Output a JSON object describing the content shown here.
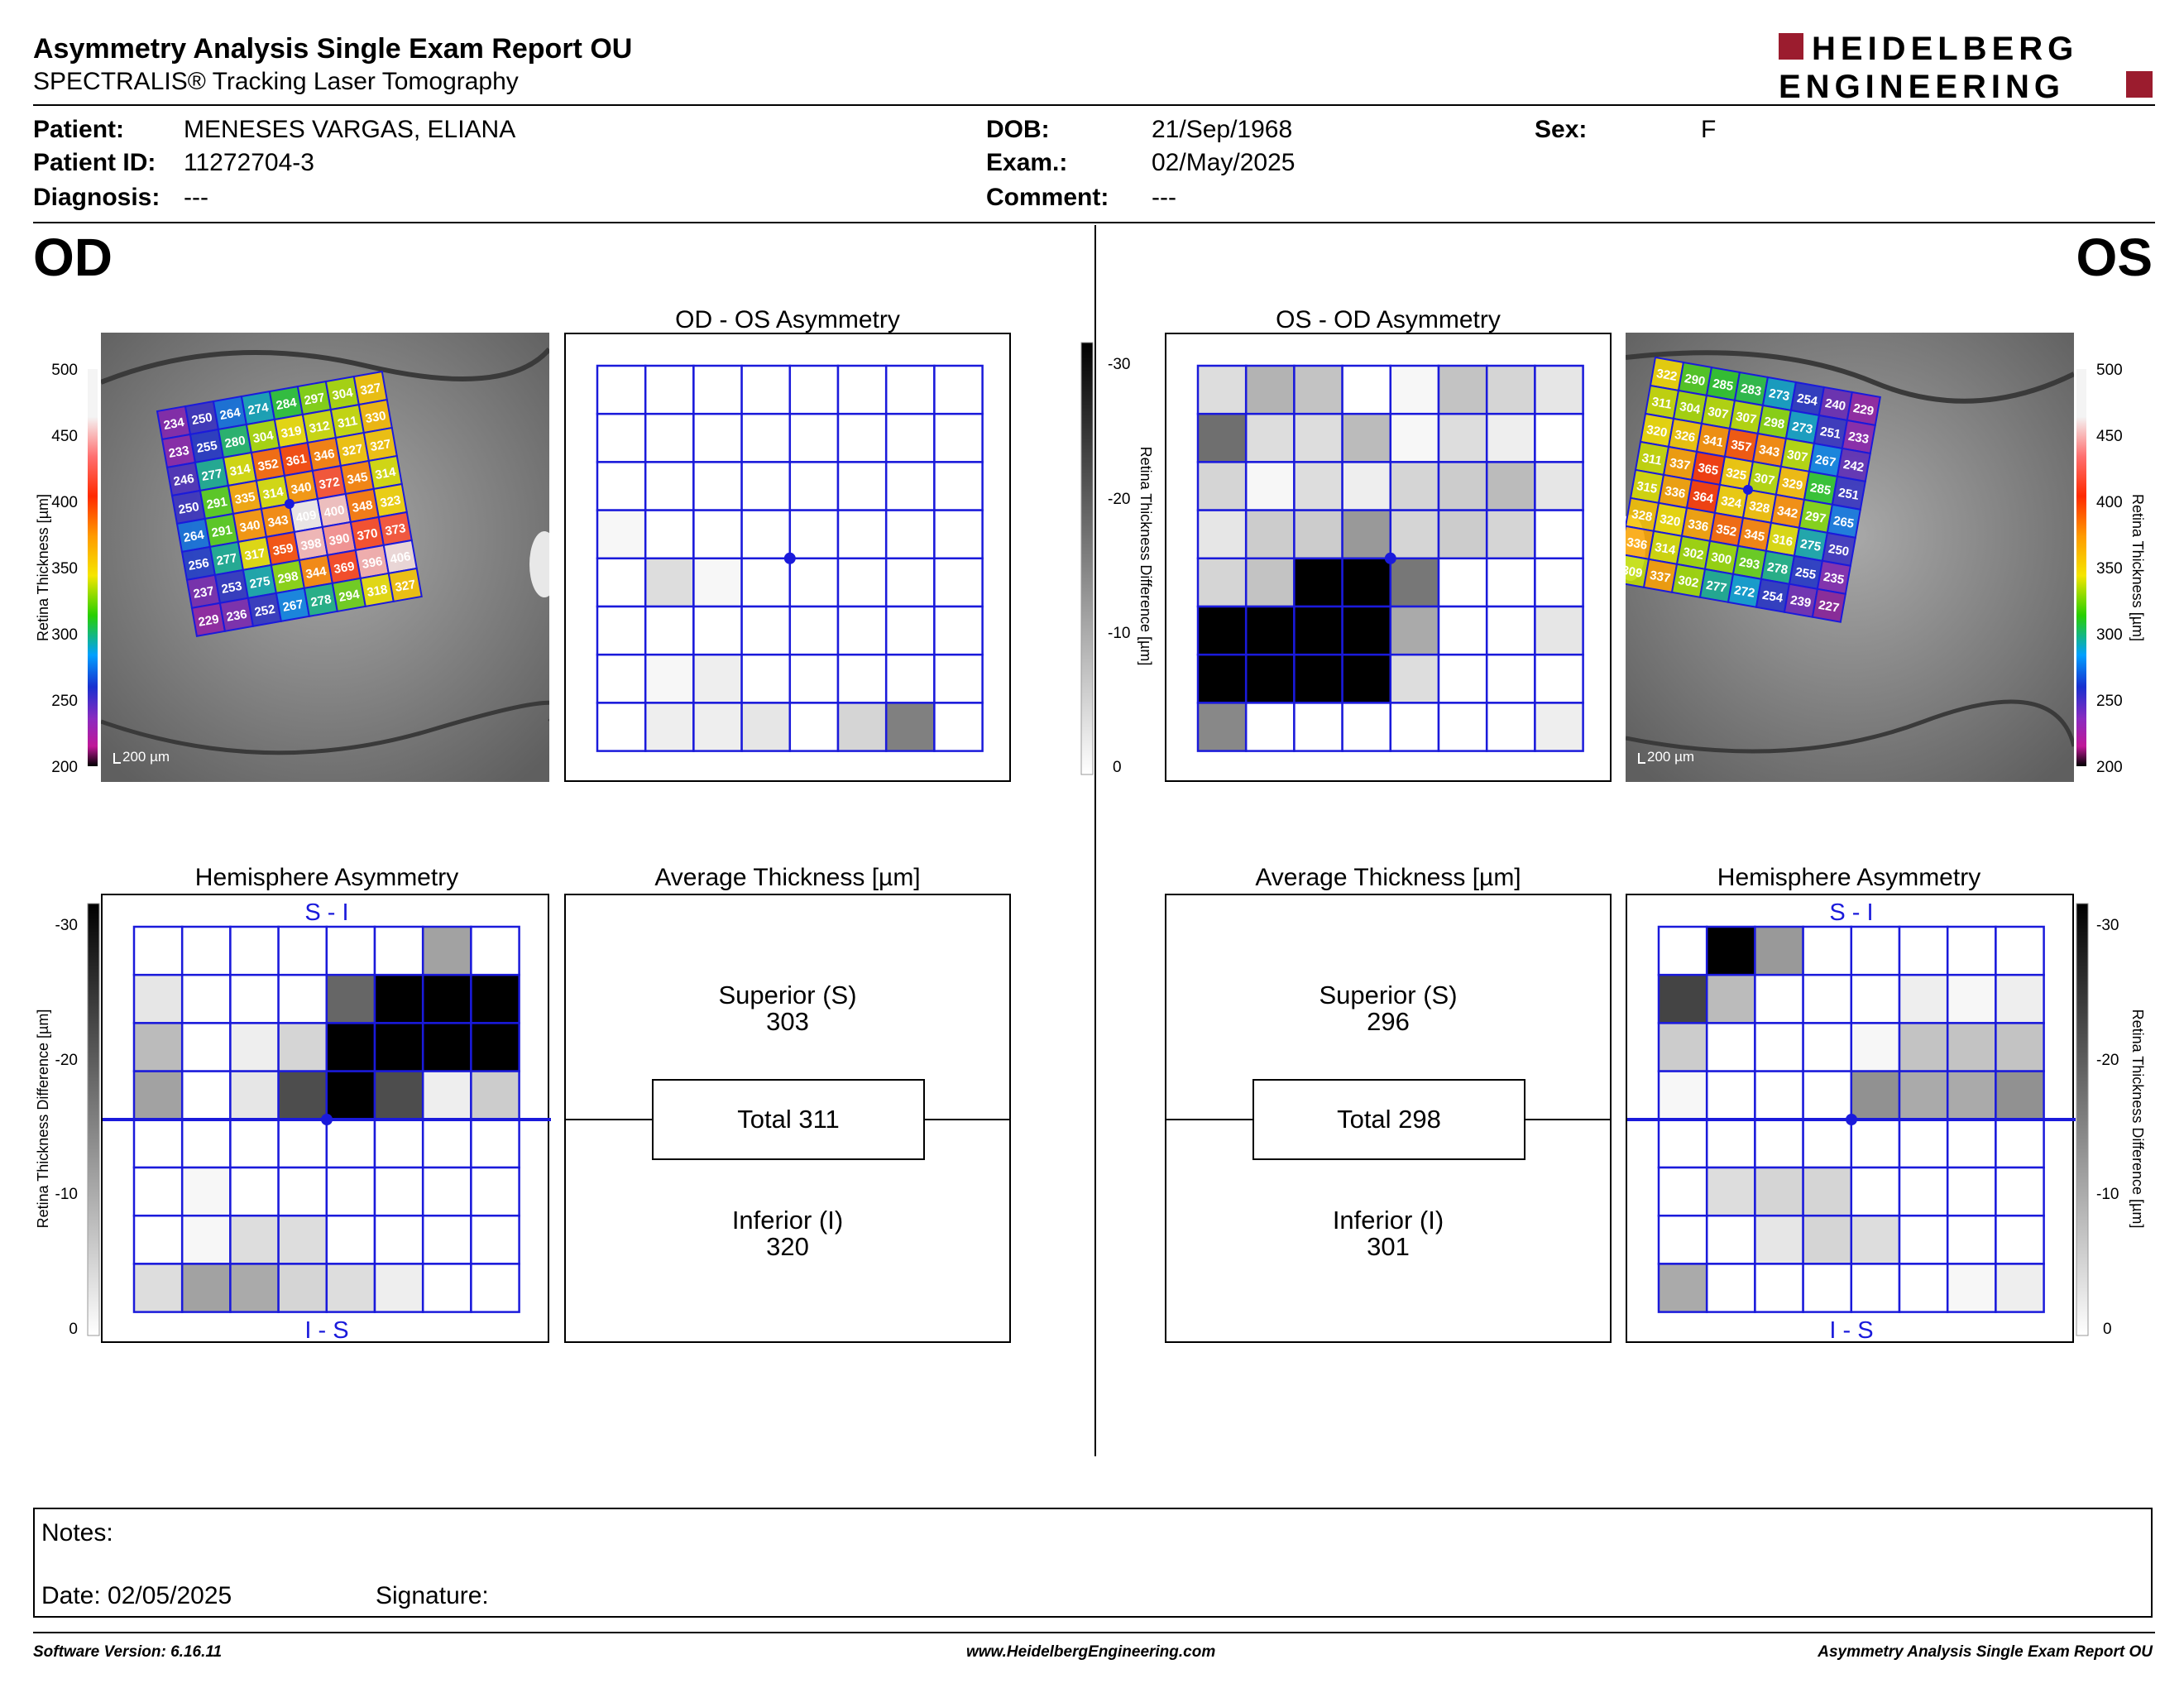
{
  "report": {
    "title": "Asymmetry Analysis Single Exam Report OU",
    "subtitle": "SPECTRALIS® Tracking Laser Tomography",
    "logo_line1": "HEIDELBERG",
    "logo_line2": "ENGINEERING",
    "brand_color": "#9b1c2e"
  },
  "patient": {
    "patient_label": "Patient:",
    "patient_value": "MENESES VARGAS, ELIANA",
    "id_label": "Patient ID:",
    "id_value": "11272704-3",
    "diagnosis_label": "Diagnosis:",
    "diagnosis_value": "---",
    "dob_label": "DOB:",
    "dob_value": "21/Sep/1968",
    "exam_label": "Exam.:",
    "exam_value": "02/May/2025",
    "comment_label": "Comment:",
    "comment_value": "---",
    "sex_label": "Sex:",
    "sex_value": "F"
  },
  "od": {
    "eye_label": "OD",
    "asym_title": "OD - OS Asymmetry",
    "hemi_title": "Hemisphere Asymmetry",
    "hemi_top": "S - I",
    "hemi_bottom": "I - S",
    "avg_title": "Average Thickness [µm]",
    "superior_label": "Superior (S)",
    "superior_value": "303",
    "total_label": "Total 311",
    "inferior_label": "Inferior (I)",
    "inferior_value": "320",
    "scale_text": "200 µm",
    "grid_values": [
      [
        234,
        250,
        264,
        274,
        284,
        297,
        304,
        327
      ],
      [
        233,
        255,
        280,
        304,
        319,
        312,
        311,
        330
      ],
      [
        246,
        277,
        314,
        352,
        361,
        346,
        327,
        327
      ],
      [
        250,
        291,
        335,
        314,
        340,
        372,
        345,
        314
      ],
      [
        264,
        291,
        340,
        343,
        409,
        400,
        348,
        323
      ],
      [
        256,
        277,
        317,
        359,
        398,
        390,
        370,
        373
      ],
      [
        237,
        253,
        275,
        298,
        344,
        369,
        396,
        406
      ],
      [
        229,
        236,
        252,
        267,
        278,
        294,
        318,
        327
      ]
    ],
    "asym_gray": [
      [
        0,
        0,
        0,
        0,
        0,
        0,
        0,
        0
      ],
      [
        0,
        0,
        0,
        0,
        0,
        0,
        0,
        0
      ],
      [
        0,
        0,
        0,
        0,
        0,
        0,
        0,
        0
      ],
      [
        1,
        0,
        0,
        0,
        0,
        0,
        0,
        0
      ],
      [
        0,
        4,
        1,
        0,
        0,
        0,
        0,
        0
      ],
      [
        0,
        0,
        0,
        0,
        0,
        0,
        0,
        0
      ],
      [
        0,
        1,
        2,
        0,
        0,
        0,
        0,
        0
      ],
      [
        0,
        2,
        2,
        3,
        0,
        5,
        15,
        0
      ]
    ],
    "hemi_gray": [
      [
        0,
        0,
        0,
        0,
        0,
        0,
        11,
        0
      ],
      [
        3,
        0,
        0,
        0,
        18,
        30,
        30,
        30
      ],
      [
        8,
        0,
        2,
        5,
        30,
        30,
        30,
        30
      ],
      [
        11,
        0,
        3,
        21,
        30,
        21,
        2,
        6
      ],
      [
        0,
        0,
        0,
        0,
        0,
        0,
        0,
        0
      ],
      [
        0,
        1,
        0,
        0,
        0,
        0,
        0,
        0
      ],
      [
        0,
        1,
        4,
        4,
        0,
        0,
        0,
        0
      ],
      [
        4,
        11,
        10,
        5,
        4,
        2,
        0,
        0
      ]
    ]
  },
  "os": {
    "eye_label": "OS",
    "asym_title": "OS - OD Asymmetry",
    "hemi_title": "Hemisphere Asymmetry",
    "hemi_top": "S - I",
    "hemi_bottom": "I - S",
    "avg_title": "Average Thickness [µm]",
    "superior_label": "Superior (S)",
    "superior_value": "296",
    "total_label": "Total 298",
    "inferior_label": "Inferior (I)",
    "inferior_value": "301",
    "scale_text": "200 µm",
    "grid_values": [
      [
        322,
        290,
        285,
        283,
        273,
        254,
        240,
        229
      ],
      [
        311,
        304,
        307,
        307,
        298,
        273,
        251,
        233
      ],
      [
        320,
        326,
        341,
        357,
        343,
        307,
        267,
        242
      ],
      [
        311,
        337,
        365,
        325,
        307,
        329,
        285,
        251
      ],
      [
        315,
        336,
        364,
        324,
        328,
        342,
        297,
        265
      ],
      [
        328,
        320,
        336,
        352,
        345,
        316,
        275,
        250
      ],
      [
        336,
        314,
        302,
        300,
        293,
        278,
        255,
        235
      ],
      [
        309,
        337,
        302,
        277,
        272,
        254,
        239,
        227
      ]
    ],
    "asym_gray": [
      [
        4,
        9,
        7,
        0,
        1,
        7,
        5,
        3
      ],
      [
        17,
        4,
        4,
        8,
        1,
        4,
        2,
        0
      ],
      [
        5,
        1,
        4,
        2,
        5,
        6,
        8,
        3
      ],
      [
        3,
        6,
        6,
        12,
        5,
        6,
        5,
        0
      ],
      [
        5,
        7,
        30,
        30,
        16,
        0,
        0,
        0
      ],
      [
        30,
        30,
        30,
        30,
        10,
        0,
        0,
        3
      ],
      [
        30,
        30,
        30,
        30,
        4,
        0,
        0,
        0
      ],
      [
        14,
        0,
        0,
        0,
        0,
        0,
        0,
        2
      ]
    ],
    "hemi_gray": [
      [
        0,
        30,
        12,
        0,
        0,
        0,
        0,
        0
      ],
      [
        22,
        8,
        0,
        0,
        0,
        2,
        1,
        2
      ],
      [
        6,
        0,
        0,
        0,
        1,
        7,
        7,
        7
      ],
      [
        1,
        0,
        0,
        0,
        13,
        10,
        10,
        13
      ],
      [
        0,
        0,
        0,
        0,
        0,
        0,
        0,
        0
      ],
      [
        0,
        4,
        5,
        5,
        0,
        0,
        0,
        0
      ],
      [
        0,
        0,
        3,
        5,
        4,
        0,
        0,
        0
      ],
      [
        10,
        0,
        0,
        0,
        0,
        0,
        1,
        2
      ]
    ]
  },
  "colorbar": {
    "thickness_label": "Retina Thickness [µm]",
    "thickness_ticks": [
      "500",
      "450",
      "400",
      "350",
      "300",
      "250",
      "200"
    ],
    "diff_label": "Retina Thickness Difference [µm]",
    "diff_ticks": [
      "-30",
      "-20",
      "-10",
      "0"
    ]
  },
  "notes": {
    "notes_label": "Notes:",
    "date_label": "Date: 02/05/2025",
    "signature_label": "Signature:"
  },
  "footer": {
    "left": "Software Version: 6.16.11",
    "center": "www.HeidelbergEngineering.com",
    "right": "Asymmetry Analysis Single Exam Report OU"
  }
}
